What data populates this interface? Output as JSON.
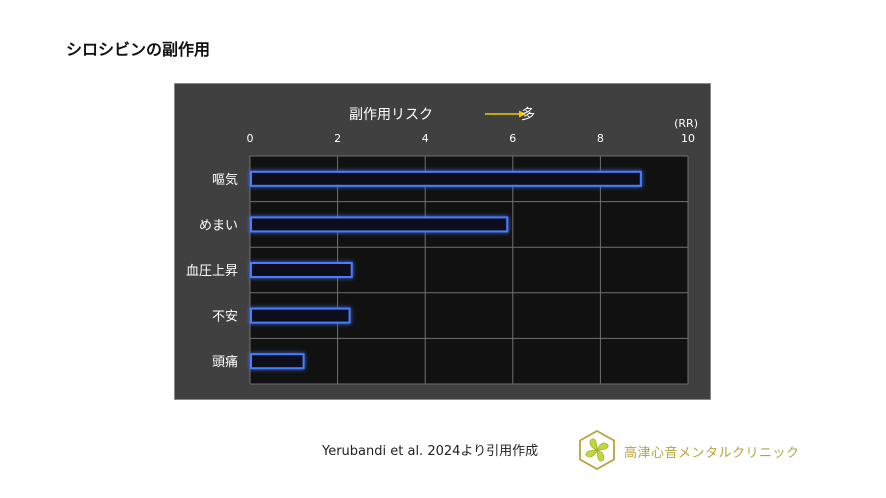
{
  "page": {
    "title": "シロシビンの副作用"
  },
  "chart_data": {
    "type": "bar",
    "orientation": "horizontal",
    "title": "副作用リスク",
    "title_arrow_label": "多",
    "unit_label": "(RR)",
    "categories": [
      "嘔気",
      "めまい",
      "血圧上昇",
      "不安",
      "頭痛"
    ],
    "values": [
      8.9,
      5.85,
      2.3,
      2.25,
      1.2
    ],
    "x_ticks": [
      0,
      2,
      4,
      6,
      8,
      10
    ],
    "xlim": [
      0,
      10
    ],
    "grid": true,
    "legend": "none",
    "colors": {
      "panel_bg": "#404040",
      "plot_bg": "#111111",
      "grid": "#707070",
      "bar_stroke": "#4a7dff",
      "bar_glow": "#2a55d0",
      "text": "#ffffff",
      "arrow": "#f0c800"
    }
  },
  "footer": {
    "citation": "Yerubandi et al. 2024より引用作成",
    "clinic_name": "高津心音メンタルクリニック",
    "logo_icon": "clover-icon",
    "logo_color": "#b8a33c"
  }
}
